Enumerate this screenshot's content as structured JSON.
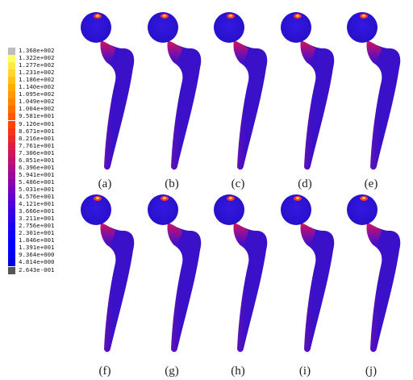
{
  "figure": {
    "legend": {
      "values": [
        "1.368e+002",
        "1.322e+002",
        "1.277e+002",
        "1.231e+002",
        "1.186e+002",
        "1.140e+002",
        "1.095e+002",
        "1.049e+002",
        "1.004e+002",
        "9.581e+001",
        "9.126e+001",
        "8.671e+001",
        "8.216e+001",
        "7.761e+001",
        "7.306e+001",
        "6.851e+001",
        "6.396e+001",
        "5.941e+001",
        "5.486e+001",
        "5.031e+001",
        "4.576e+001",
        "4.121e+001",
        "3.666e+001",
        "3.211e+001",
        "2.756e+001",
        "2.301e+001",
        "1.846e+001",
        "1.391e+001",
        "9.364e+000",
        "4.814e+000",
        "2.643e-001"
      ],
      "colors": [
        "#bdbdbd",
        "#ffff66",
        "#ffe94d",
        "#ffd633",
        "#ffc21a",
        "#ffad00",
        "#ff9900",
        "#ff8400",
        "#ff6f00",
        "#ff5a00",
        "#ff4500",
        "#f53516",
        "#e8292e",
        "#db1f44",
        "#cc175a",
        "#bd1170",
        "#ad0c85",
        "#9c0899",
        "#8a05ab",
        "#7603bd",
        "#6102cc",
        "#4c01da",
        "#3a01e5",
        "#2a00ee",
        "#1c00f4",
        "#1000f8",
        "#0600fb",
        "#0000ff",
        "#0000f0",
        "#0000e0",
        "#555555"
      ]
    },
    "panels": [
      {
        "label": "(a)"
      },
      {
        "label": "(b)"
      },
      {
        "label": "(c)"
      },
      {
        "label": "(d)"
      },
      {
        "label": "(e)"
      },
      {
        "label": "(f)"
      },
      {
        "label": "(g)"
      },
      {
        "label": "(h)"
      },
      {
        "label": "(i)"
      },
      {
        "label": "(j)"
      }
    ],
    "colors": {
      "implant_body": "#3a10c8",
      "implant_head": "#2a12d8",
      "hotspot": "#ff3b30",
      "hotspot_core": "#ffd84a",
      "neck_stress": "#d4145a"
    }
  }
}
